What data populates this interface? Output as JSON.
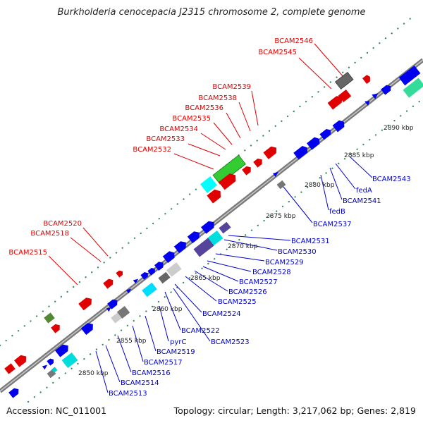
{
  "title": "Burkholderia cenocepacia J2315 chromosome 2, complete genome",
  "footer": {
    "accession": "Accession: NC_011001",
    "topology": "Topology: circular; Length: 3,217,062 bp; Genes: 2,819"
  },
  "colors": {
    "backbone": "#808080",
    "label_forward": "#dd0000",
    "label_reverse": "#0000cc",
    "tick_major": "#228b22",
    "tick_minor": "#2e8b57"
  },
  "ticks": [
    {
      "label": "2850 kbp"
    },
    {
      "label": "2855 kbp"
    },
    {
      "label": "2860 kbp"
    },
    {
      "label": "2865 kbp"
    },
    {
      "label": "2870 kbp"
    },
    {
      "label": "2875 kbp"
    },
    {
      "label": "2880 kbp"
    },
    {
      "label": "2885 kbp"
    },
    {
      "label": "2890 kbp"
    }
  ],
  "gene_labels_forward": [
    "BCAM2546",
    "BCAM2545",
    "BCAM2539",
    "BCAM2538",
    "BCAM2536",
    "BCAM2535",
    "BCAM2534",
    "BCAM2533",
    "BCAM2532",
    "BCAM2520",
    "BCAM2518",
    "BCAM2515"
  ],
  "gene_labels_reverse": [
    "BCAM2543",
    "fedA",
    "BCAM2541",
    "fedB",
    "BCAM2537",
    "BCAM2531",
    "BCAM2530",
    "BCAM2529",
    "BCAM2528",
    "BCAM2527",
    "BCAM2526",
    "BCAM2525",
    "BCAM2524",
    "BCAM2522",
    "BCAM2523",
    "pyrC",
    "BCAM2519",
    "BCAM2517",
    "BCAM2516",
    "BCAM2514",
    "BCAM2513"
  ]
}
